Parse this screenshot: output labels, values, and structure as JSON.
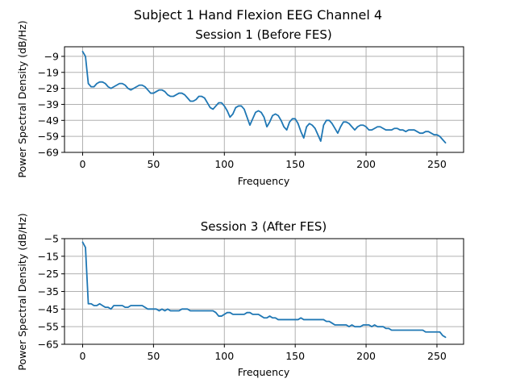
{
  "figure": {
    "suptitle": "Subject 1 Hand Flexion EEG Channel 4"
  },
  "chart_data": [
    {
      "type": "line",
      "title": "Session 1 (Before FES)",
      "xlabel": "Frequency",
      "ylabel": "Power Spectral Density (dB/Hz)",
      "xlim": [
        -12.8,
        268.8
      ],
      "ylim": [
        -69,
        -3
      ],
      "xticks": [
        0,
        50,
        100,
        150,
        200,
        250
      ],
      "yticks": [
        -9,
        -19,
        -29,
        -39,
        -49,
        -59,
        -69
      ],
      "xtick_labels": [
        "0",
        "50",
        "100",
        "150",
        "200",
        "250"
      ],
      "ytick_labels": [
        "−9",
        "−19",
        "−29",
        "−39",
        "−49",
        "−59",
        "−69"
      ],
      "grid": true,
      "line_color": "#1f77b4",
      "x": [
        0,
        2,
        4,
        6,
        8,
        10,
        12,
        14,
        16,
        18,
        20,
        22,
        24,
        26,
        28,
        30,
        32,
        34,
        36,
        38,
        40,
        42,
        44,
        46,
        48,
        50,
        52,
        54,
        56,
        58,
        60,
        62,
        64,
        66,
        68,
        70,
        72,
        74,
        76,
        78,
        80,
        82,
        84,
        86,
        88,
        90,
        92,
        94,
        96,
        98,
        100,
        102,
        104,
        106,
        108,
        110,
        112,
        114,
        116,
        118,
        120,
        122,
        124,
        126,
        128,
        130,
        132,
        134,
        136,
        138,
        140,
        142,
        144,
        146,
        148,
        150,
        152,
        154,
        156,
        158,
        160,
        162,
        164,
        166,
        168,
        170,
        172,
        174,
        176,
        178,
        180,
        182,
        184,
        186,
        188,
        190,
        192,
        194,
        196,
        198,
        200,
        202,
        204,
        206,
        208,
        210,
        212,
        214,
        216,
        218,
        220,
        222,
        224,
        226,
        228,
        230,
        232,
        234,
        236,
        238,
        240,
        242,
        244,
        246,
        248,
        250,
        252,
        254,
        256
      ],
      "y": [
        -6,
        -9,
        -26,
        -28,
        -28,
        -26,
        -25,
        -25,
        -26,
        -28,
        -29,
        -28,
        -27,
        -26,
        -26,
        -27,
        -29,
        -30,
        -29,
        -28,
        -27,
        -27,
        -28,
        -30,
        -32,
        -32,
        -31,
        -30,
        -30,
        -31,
        -33,
        -34,
        -34,
        -33,
        -32,
        -32,
        -33,
        -35,
        -37,
        -37,
        -36,
        -34,
        -34,
        -35,
        -38,
        -41,
        -42,
        -40,
        -38,
        -38,
        -40,
        -43,
        -47,
        -45,
        -41,
        -40,
        -40,
        -42,
        -47,
        -52,
        -48,
        -44,
        -43,
        -44,
        -47,
        -53,
        -50,
        -46,
        -45,
        -46,
        -49,
        -53,
        -55,
        -50,
        -48,
        -48,
        -51,
        -56,
        -60,
        -53,
        -51,
        -52,
        -54,
        -58,
        -62,
        -52,
        -49,
        -49,
        -51,
        -54,
        -57,
        -53,
        -50,
        -50,
        -51,
        -53,
        -55,
        -53,
        -52,
        -52,
        -53,
        -55,
        -55,
        -54,
        -53,
        -53,
        -54,
        -55,
        -55,
        -55,
        -54,
        -54,
        -55,
        -55,
        -56,
        -55,
        -55,
        -55,
        -56,
        -57,
        -57,
        -56,
        -56,
        -57,
        -58,
        -58,
        -59,
        -61,
        -63
      ]
    },
    {
      "type": "line",
      "title": "Session 3 (After FES)",
      "xlabel": "Frequency",
      "ylabel": "Power Spectral Density (dB/Hz)",
      "xlim": [
        -12.8,
        268.8
      ],
      "ylim": [
        -65,
        -5
      ],
      "xticks": [
        0,
        50,
        100,
        150,
        200,
        250
      ],
      "yticks": [
        -5,
        -15,
        -25,
        -35,
        -45,
        -55,
        -65
      ],
      "xtick_labels": [
        "0",
        "50",
        "100",
        "150",
        "200",
        "250"
      ],
      "ytick_labels": [
        "−5",
        "−15",
        "−25",
        "−35",
        "−45",
        "−55",
        "−65"
      ],
      "grid": true,
      "line_color": "#1f77b4",
      "x": [
        0,
        2,
        4,
        6,
        8,
        10,
        12,
        14,
        16,
        18,
        20,
        22,
        24,
        26,
        28,
        30,
        32,
        34,
        36,
        38,
        40,
        42,
        44,
        46,
        48,
        50,
        52,
        54,
        56,
        58,
        60,
        62,
        64,
        66,
        68,
        70,
        72,
        74,
        76,
        78,
        80,
        82,
        84,
        86,
        88,
        90,
        92,
        94,
        96,
        98,
        100,
        102,
        104,
        106,
        108,
        110,
        112,
        114,
        116,
        118,
        120,
        122,
        124,
        126,
        128,
        130,
        132,
        134,
        136,
        138,
        140,
        142,
        144,
        146,
        148,
        150,
        152,
        154,
        156,
        158,
        160,
        162,
        164,
        166,
        168,
        170,
        172,
        174,
        176,
        178,
        180,
        182,
        184,
        186,
        188,
        190,
        192,
        194,
        196,
        198,
        200,
        202,
        204,
        206,
        208,
        210,
        212,
        214,
        216,
        218,
        220,
        222,
        224,
        226,
        228,
        230,
        232,
        234,
        236,
        238,
        240,
        242,
        244,
        246,
        248,
        250,
        252,
        254,
        256
      ],
      "y": [
        -7,
        -10,
        -42,
        -42,
        -43,
        -43,
        -42,
        -43,
        -44,
        -44,
        -45,
        -43,
        -43,
        -43,
        -43,
        -44,
        -44,
        -43,
        -43,
        -43,
        -43,
        -43,
        -44,
        -45,
        -45,
        -45,
        -45,
        -46,
        -45,
        -46,
        -45,
        -46,
        -46,
        -46,
        -46,
        -45,
        -45,
        -45,
        -46,
        -46,
        -46,
        -46,
        -46,
        -46,
        -46,
        -46,
        -46,
        -47,
        -49,
        -49,
        -48,
        -47,
        -47,
        -48,
        -48,
        -48,
        -48,
        -48,
        -47,
        -47,
        -48,
        -48,
        -48,
        -49,
        -50,
        -50,
        -49,
        -50,
        -50,
        -51,
        -51,
        -51,
        -51,
        -51,
        -51,
        -51,
        -51,
        -50,
        -51,
        -51,
        -51,
        -51,
        -51,
        -51,
        -51,
        -51,
        -52,
        -52,
        -53,
        -54,
        -54,
        -54,
        -54,
        -54,
        -55,
        -54,
        -55,
        -55,
        -55,
        -54,
        -54,
        -54,
        -55,
        -54,
        -55,
        -55,
        -55,
        -56,
        -56,
        -57,
        -57,
        -57,
        -57,
        -57,
        -57,
        -57,
        -57,
        -57,
        -57,
        -57,
        -57,
        -58,
        -58,
        -58,
        -58,
        -58,
        -58,
        -60,
        -61
      ]
    }
  ]
}
